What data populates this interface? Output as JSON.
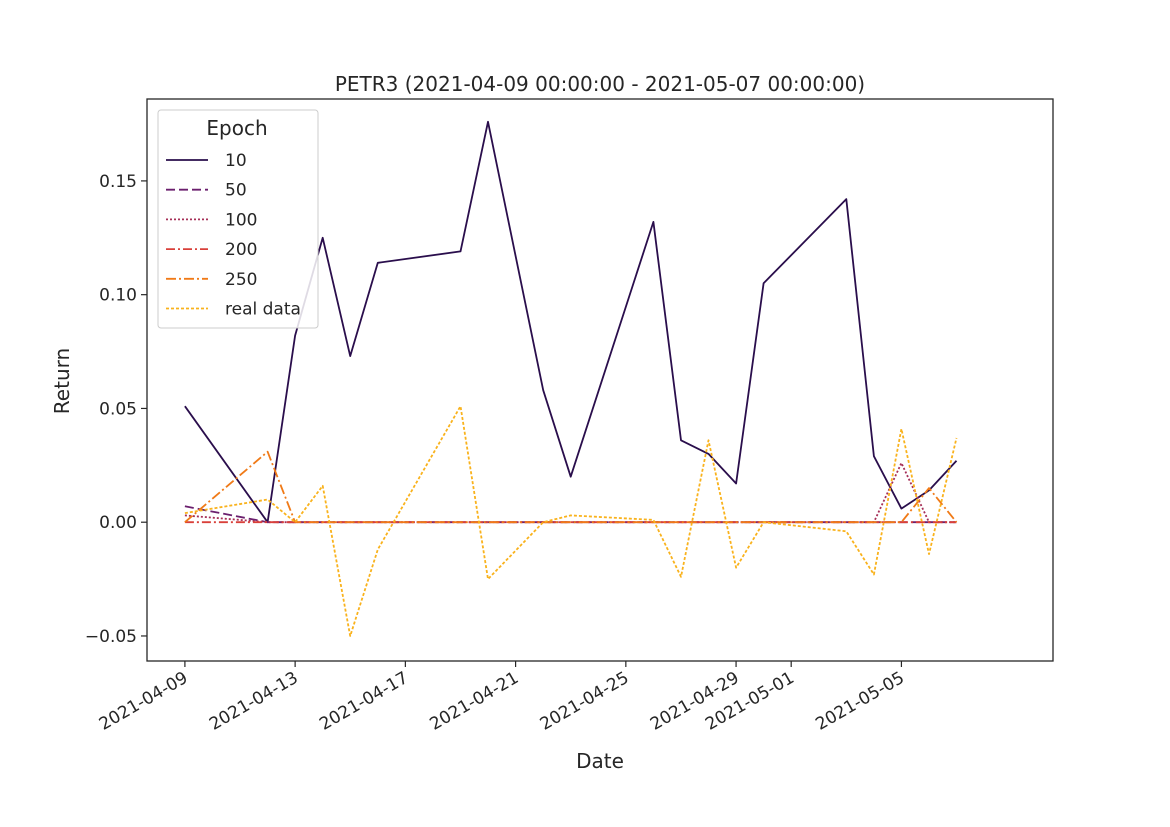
{
  "chart_data": {
    "type": "line",
    "title": "PETR3 (2021-04-09 00:00:00 - 2021-05-07 00:00:00)",
    "xlabel": "Date",
    "ylabel": "Return",
    "ylim": [
      -0.061,
      0.186
    ],
    "xlim": [
      "2021-04-07 15:00",
      "2021-05-10 12:00"
    ],
    "x_ticks": [
      "2021-04-09",
      "2021-04-13",
      "2021-04-17",
      "2021-04-21",
      "2021-04-25",
      "2021-04-29",
      "2021-05-01",
      "2021-05-05"
    ],
    "y_ticks": [
      -0.05,
      0.0,
      0.05,
      0.1,
      0.15
    ],
    "y_tick_labels": [
      "−0.05",
      "0.00",
      "0.05",
      "0.10",
      "0.15"
    ],
    "legend": {
      "title": "Epoch",
      "placement": "top-left"
    },
    "x": [
      "2021-04-09",
      "2021-04-12",
      "2021-04-13",
      "2021-04-14",
      "2021-04-15",
      "2021-04-16",
      "2021-04-19",
      "2021-04-20",
      "2021-04-22",
      "2021-04-23",
      "2021-04-26",
      "2021-04-27",
      "2021-04-28",
      "2021-04-29",
      "2021-04-30",
      "2021-05-03",
      "2021-05-04",
      "2021-05-05",
      "2021-05-06",
      "2021-05-07"
    ],
    "series": [
      {
        "name": "10",
        "color": "#2a0e4c",
        "dash": "",
        "values": [
          0.051,
          0.0,
          0.082,
          0.125,
          0.073,
          0.114,
          0.119,
          0.176,
          0.058,
          0.02,
          0.132,
          0.036,
          0.03,
          0.017,
          0.105,
          0.142,
          0.029,
          0.006,
          0.014,
          0.027
        ]
      },
      {
        "name": "50",
        "color": "#6b1f6e",
        "dash": "9,4",
        "values": [
          0.007,
          0.0,
          0.0,
          0.0,
          0.0,
          0.0,
          0.0,
          0.0,
          0.0,
          0.0,
          0.0,
          0.0,
          0.0,
          0.0,
          0.0,
          0.0,
          0.0,
          0.0,
          0.0,
          0.0
        ]
      },
      {
        "name": "100",
        "color": "#a62f57",
        "dash": "2,2",
        "values": [
          0.003,
          0.0,
          0.0,
          0.0,
          0.0,
          0.0,
          0.0,
          0.0,
          0.0,
          0.0,
          0.0,
          0.0,
          0.0,
          0.0,
          0.0,
          0.0,
          0.0,
          0.026,
          0.0,
          0.0
        ]
      },
      {
        "name": "200",
        "color": "#d9403a",
        "dash": "9,3,2,3",
        "values": [
          0.0,
          0.0,
          0.0,
          0.0,
          0.0,
          0.0,
          0.0,
          0.0,
          0.0,
          0.0,
          0.0,
          0.0,
          0.0,
          0.0,
          0.0,
          0.0,
          0.0,
          0.0,
          0.0,
          0.0
        ]
      },
      {
        "name": "250",
        "color": "#f07a17",
        "dash": "10,3,2,3",
        "values": [
          0.0,
          0.031,
          0.0,
          0.0,
          0.0,
          0.0,
          0.0,
          0.0,
          0.0,
          0.0,
          0.0,
          0.0,
          0.0,
          0.0,
          0.0,
          0.0,
          0.0,
          0.0,
          0.015,
          0.0
        ]
      },
      {
        "name": "real data",
        "color": "#f9b21c",
        "dash": "3,2",
        "values": [
          0.004,
          0.01,
          0.0,
          0.016,
          -0.05,
          -0.012,
          0.051,
          -0.025,
          0.0,
          0.003,
          0.001,
          -0.024,
          0.036,
          -0.02,
          0.0,
          -0.004,
          -0.023,
          0.041,
          -0.014,
          0.037
        ]
      }
    ]
  }
}
